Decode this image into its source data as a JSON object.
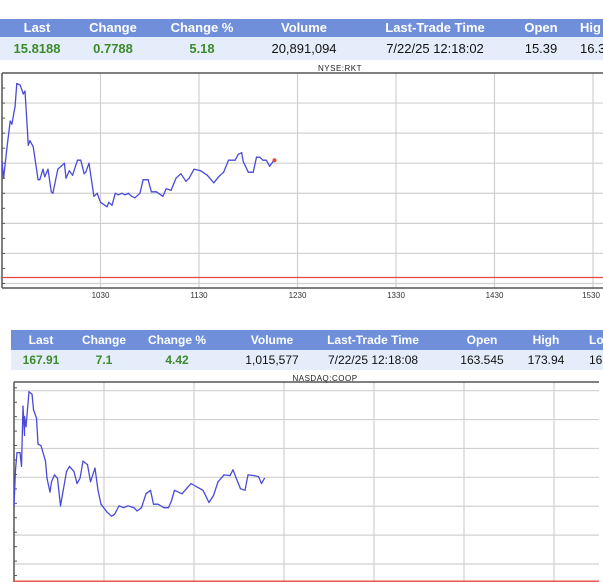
{
  "quote_tables": [
    {
      "columns": [
        "Last",
        "Change",
        "Change %",
        "Volume",
        "Last-Trade Time",
        "Open",
        "Hig"
      ],
      "values": [
        "15.8188",
        "0.7788",
        "5.18",
        "20,891,094",
        "7/22/25 12:18:02",
        "15.39",
        "16.3"
      ]
    },
    {
      "columns": [
        "Last",
        "Change",
        "Change %",
        "Volume",
        "Last-Trade Time",
        "Open",
        "High",
        "Lo"
      ],
      "values": [
        "167.91",
        "7.1",
        "4.42",
        "1,015,577",
        "7/22/25 12:18:08",
        "163.545",
        "173.94",
        "163"
      ]
    }
  ],
  "colors": {
    "header": "#6f8fda",
    "row": "#e5edfb",
    "positive": "#3b8a2c",
    "line": "#4a4ad8",
    "prev_close": "#e8473b",
    "grid": "#d0d0d0"
  },
  "chart_data": [
    {
      "type": "line",
      "title": "NYSE:RKT",
      "x_tick_labels": [
        "1030",
        "1130",
        "1230",
        "1330",
        "1430",
        "1530"
      ],
      "x_range": [
        "09:30",
        "16:00"
      ],
      "ylim": [
        14.97,
        16.4
      ],
      "y_grid": [
        15.0,
        15.2,
        15.4,
        15.6,
        15.8,
        16.0,
        16.2
      ],
      "grid": true,
      "reference_line": {
        "label": "previous close",
        "value": 15.04
      },
      "last_point_marker": true,
      "x": [
        "09:30",
        "09:31",
        "09:33",
        "09:35",
        "09:36",
        "09:38",
        "09:39",
        "09:41",
        "09:43",
        "09:44",
        "09:46",
        "09:47",
        "09:49",
        "09:52",
        "09:53",
        "09:55",
        "09:56",
        "09:58",
        "10:00",
        "10:01",
        "10:04",
        "10:06",
        "10:08",
        "10:09",
        "10:11",
        "10:13",
        "10:16",
        "10:18",
        "10:20",
        "10:21",
        "10:23",
        "10:26",
        "10:28",
        "10:30",
        "10:34",
        "10:35",
        "10:37",
        "10:39",
        "10:41",
        "10:43",
        "10:45",
        "10:47",
        "10:49",
        "10:51",
        "10:54",
        "10:56",
        "10:59",
        "11:01",
        "11:04",
        "11:08",
        "11:10",
        "11:13",
        "11:16",
        "11:19",
        "11:22",
        "11:24",
        "11:27",
        "11:31",
        "11:35",
        "11:39",
        "11:42",
        "11:45",
        "11:48",
        "11:52",
        "11:54",
        "11:56",
        "11:57",
        "12:00",
        "12:03",
        "12:05",
        "12:07",
        "12:09",
        "12:11",
        "12:13",
        "12:15",
        "12:16"
      ],
      "y": [
        15.81,
        15.7,
        15.9,
        16.08,
        16.06,
        16.18,
        16.33,
        16.32,
        16.26,
        16.28,
        15.92,
        15.95,
        15.91,
        15.69,
        15.69,
        15.76,
        15.71,
        15.76,
        15.61,
        15.6,
        15.76,
        15.78,
        15.8,
        15.7,
        15.75,
        15.72,
        15.82,
        15.82,
        15.73,
        15.74,
        15.8,
        15.58,
        15.6,
        15.54,
        15.51,
        15.54,
        15.52,
        15.6,
        15.59,
        15.6,
        15.59,
        15.6,
        15.58,
        15.57,
        15.6,
        15.69,
        15.69,
        15.61,
        15.61,
        15.58,
        15.63,
        15.62,
        15.7,
        15.73,
        15.68,
        15.7,
        15.76,
        15.75,
        15.72,
        15.67,
        15.71,
        15.74,
        15.82,
        15.82,
        15.86,
        15.87,
        15.81,
        15.74,
        15.74,
        15.84,
        15.84,
        15.82,
        15.82,
        15.78,
        15.81,
        15.82
      ]
    },
    {
      "type": "line",
      "title": "NASDAQ:COOP",
      "x_range": [
        "09:30",
        "16:00"
      ],
      "ylim": [
        160.2,
        174.6
      ],
      "y_grid": [
        162,
        164,
        166,
        168,
        170,
        172,
        174
      ],
      "grid": true,
      "reference_line": {
        "label": "previous close",
        "value": 160.81
      },
      "last_point_marker": false,
      "x": [
        "09:30",
        "09:31",
        "09:32",
        "09:34",
        "09:35",
        "09:36",
        "09:37",
        "09:37",
        "09:38",
        "09:40",
        "09:42",
        "09:43",
        "09:45",
        "09:46",
        "09:48",
        "09:51",
        "09:52",
        "09:54",
        "09:55",
        "09:57",
        "09:59",
        "10:01",
        "10:03",
        "10:05",
        "10:07",
        "10:10",
        "10:12",
        "10:14",
        "10:16",
        "10:19",
        "10:21",
        "10:24",
        "10:26",
        "10:28",
        "10:32",
        "10:35",
        "10:37",
        "10:40",
        "10:43",
        "10:46",
        "10:50",
        "10:52",
        "10:55",
        "10:58",
        "11:01",
        "11:03",
        "11:06",
        "11:10",
        "11:13",
        "11:15",
        "11:17",
        "11:22",
        "11:25",
        "11:28",
        "11:32",
        "11:36",
        "11:40",
        "11:43",
        "11:46",
        "11:50",
        "11:54",
        "11:56",
        "11:58",
        "12:01",
        "12:04",
        "12:06",
        "12:10",
        "12:13",
        "12:15",
        "12:17"
      ],
      "y": [
        166.02,
        168.52,
        169.71,
        169.71,
        168.76,
        172.93,
        170.9,
        172.21,
        171.5,
        173.93,
        173.76,
        172.69,
        172.1,
        170.31,
        170.19,
        169.12,
        167.93,
        166.98,
        167.69,
        168.17,
        167.93,
        166.02,
        167.21,
        168.4,
        168.76,
        168.4,
        167.57,
        167.93,
        169.12,
        168.88,
        167.69,
        168.64,
        167.1,
        166.14,
        165.6,
        165.31,
        165.43,
        166.02,
        165.9,
        166.02,
        165.9,
        165.67,
        165.9,
        166.86,
        167.1,
        166.14,
        166.14,
        165.9,
        165.9,
        166.38,
        167.1,
        166.86,
        167.21,
        167.57,
        167.33,
        167.1,
        166.26,
        166.74,
        167.69,
        168.17,
        168.12,
        168.52,
        167.98,
        167.21,
        167.1,
        168.17,
        168.12,
        168.05,
        167.57,
        167.93
      ]
    }
  ]
}
